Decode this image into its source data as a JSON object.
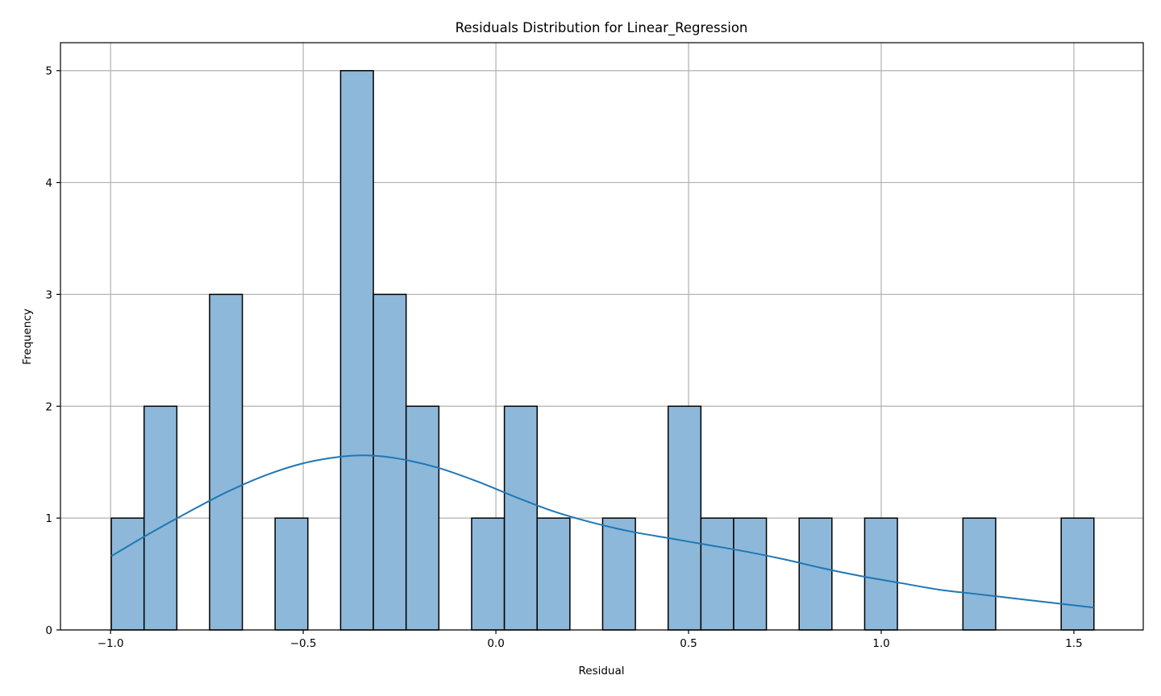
{
  "chart_data": {
    "type": "bar",
    "title": "Residuals Distribution for Linear_Regression",
    "xlabel": "Residual",
    "ylabel": "Frequency",
    "xlim": [
      -1.13,
      1.68
    ],
    "ylim": [
      0,
      5.25
    ],
    "xticks": [
      -1.0,
      -0.5,
      0.0,
      0.5,
      1.0,
      1.5
    ],
    "xtick_labels": [
      "−1.0",
      "−0.5",
      "0.0",
      "0.5",
      "1.0",
      "1.5"
    ],
    "yticks": [
      0,
      1,
      2,
      3,
      4,
      5
    ],
    "ytick_labels": [
      "0",
      "1",
      "2",
      "3",
      "4",
      "5"
    ],
    "grid": true,
    "bar_color": "#8db8d9",
    "bar_edge_color": "#000000",
    "kde_color": "#1f77b4",
    "bins": [
      {
        "x0": -0.998,
        "x1": -0.913,
        "count": 1
      },
      {
        "x0": -0.913,
        "x1": -0.828,
        "count": 2
      },
      {
        "x0": -0.828,
        "x1": -0.743,
        "count": 0
      },
      {
        "x0": -0.743,
        "x1": -0.658,
        "count": 3
      },
      {
        "x0": -0.658,
        "x1": -0.573,
        "count": 0
      },
      {
        "x0": -0.573,
        "x1": -0.488,
        "count": 1
      },
      {
        "x0": -0.488,
        "x1": -0.403,
        "count": 0
      },
      {
        "x0": -0.403,
        "x1": -0.318,
        "count": 5
      },
      {
        "x0": -0.318,
        "x1": -0.233,
        "count": 3
      },
      {
        "x0": -0.233,
        "x1": -0.148,
        "count": 2
      },
      {
        "x0": -0.148,
        "x1": -0.063,
        "count": 0
      },
      {
        "x0": -0.063,
        "x1": 0.022,
        "count": 1
      },
      {
        "x0": 0.022,
        "x1": 0.107,
        "count": 2
      },
      {
        "x0": 0.107,
        "x1": 0.192,
        "count": 1
      },
      {
        "x0": 0.192,
        "x1": 0.277,
        "count": 0
      },
      {
        "x0": 0.277,
        "x1": 0.362,
        "count": 1
      },
      {
        "x0": 0.362,
        "x1": 0.447,
        "count": 0
      },
      {
        "x0": 0.447,
        "x1": 0.532,
        "count": 2
      },
      {
        "x0": 0.532,
        "x1": 0.617,
        "count": 1
      },
      {
        "x0": 0.617,
        "x1": 0.702,
        "count": 1
      },
      {
        "x0": 0.702,
        "x1": 0.787,
        "count": 0
      },
      {
        "x0": 0.787,
        "x1": 0.872,
        "count": 1
      },
      {
        "x0": 0.872,
        "x1": 0.957,
        "count": 0
      },
      {
        "x0": 0.957,
        "x1": 1.042,
        "count": 1
      },
      {
        "x0": 1.042,
        "x1": 1.127,
        "count": 0
      },
      {
        "x0": 1.127,
        "x1": 1.212,
        "count": 0
      },
      {
        "x0": 1.212,
        "x1": 1.297,
        "count": 1
      },
      {
        "x0": 1.297,
        "x1": 1.382,
        "count": 0
      },
      {
        "x0": 1.382,
        "x1": 1.467,
        "count": 0
      },
      {
        "x0": 1.467,
        "x1": 1.552,
        "count": 1
      }
    ],
    "kde": {
      "x": [
        -0.998,
        -0.9,
        -0.8,
        -0.7,
        -0.6,
        -0.5,
        -0.4,
        -0.33,
        -0.25,
        -0.15,
        -0.05,
        0.05,
        0.15,
        0.25,
        0.35,
        0.45,
        0.55,
        0.65,
        0.75,
        0.85,
        0.95,
        1.05,
        1.15,
        1.25,
        1.35,
        1.45,
        1.552
      ],
      "y": [
        0.66,
        0.86,
        1.05,
        1.23,
        1.38,
        1.49,
        1.55,
        1.56,
        1.53,
        1.45,
        1.33,
        1.19,
        1.06,
        0.96,
        0.88,
        0.82,
        0.76,
        0.7,
        0.63,
        0.55,
        0.48,
        0.42,
        0.36,
        0.32,
        0.28,
        0.24,
        0.2
      ]
    }
  }
}
